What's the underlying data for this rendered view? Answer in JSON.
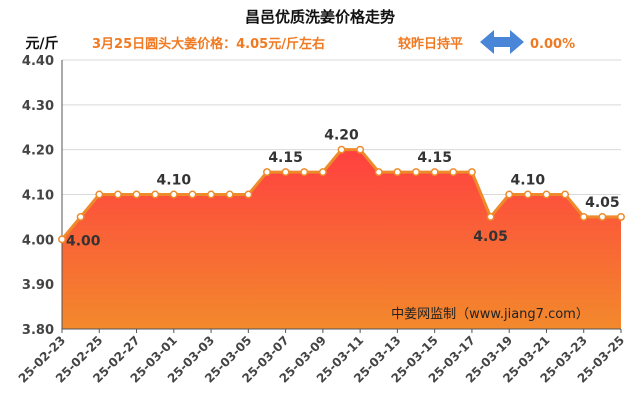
{
  "header": {
    "title": "昌邑优质洗姜价格走势",
    "unit_label": "元/斤",
    "price_info": "3月25日圆头大姜价格：4.05元/斤左右",
    "compare_text": "较昨日持平",
    "change_value": "0.00%",
    "compare_icon": "double-arrow-icon"
  },
  "source": "中姜网监制（www.jiang7.com）",
  "colors": {
    "line": "#ee8a2a",
    "fill_top": "#ff4040",
    "fill_bottom": "#f3892c",
    "accent_text": "#f07a22",
    "arrow": "#4a86d8"
  },
  "chart_data": {
    "type": "area",
    "title": "昌邑优质洗姜价格走势",
    "ylabel": "元/斤",
    "ylim": [
      3.8,
      4.4
    ],
    "yticks": [
      "3.80",
      "3.90",
      "4.00",
      "4.10",
      "4.20",
      "4.30",
      "4.40"
    ],
    "grid": true,
    "x": [
      "25-02-23",
      "25-02-24",
      "25-02-25",
      "25-02-26",
      "25-02-27",
      "25-02-28",
      "25-03-01",
      "25-03-02",
      "25-03-03",
      "25-03-04",
      "25-03-05",
      "25-03-06",
      "25-03-07",
      "25-03-08",
      "25-03-09",
      "25-03-10",
      "25-03-11",
      "25-03-12",
      "25-03-13",
      "25-03-14",
      "25-03-15",
      "25-03-16",
      "25-03-17",
      "25-03-18",
      "25-03-19",
      "25-03-20",
      "25-03-21",
      "25-03-22",
      "25-03-23",
      "25-03-24",
      "25-03-25"
    ],
    "xtick_labels": [
      "25-02-23",
      "25-02-25",
      "25-02-27",
      "25-03-01",
      "25-03-03",
      "25-03-05",
      "25-03-07",
      "25-03-09",
      "25-03-11",
      "25-03-13",
      "25-03-15",
      "25-03-17",
      "25-03-19",
      "25-03-21",
      "25-03-23",
      "25-03-25"
    ],
    "values": [
      4.0,
      4.05,
      4.1,
      4.1,
      4.1,
      4.1,
      4.1,
      4.1,
      4.1,
      4.1,
      4.1,
      4.15,
      4.15,
      4.15,
      4.15,
      4.2,
      4.2,
      4.15,
      4.15,
      4.15,
      4.15,
      4.15,
      4.15,
      4.05,
      4.1,
      4.1,
      4.1,
      4.1,
      4.05,
      4.05,
      4.05
    ],
    "data_labels": [
      {
        "index": 0,
        "text": "4.00"
      },
      {
        "index": 6,
        "text": "4.10"
      },
      {
        "index": 12,
        "text": "4.15"
      },
      {
        "index": 15,
        "text": "4.20"
      },
      {
        "index": 20,
        "text": "4.15"
      },
      {
        "index": 23,
        "text": "4.05"
      },
      {
        "index": 25,
        "text": "4.10"
      },
      {
        "index": 29,
        "text": "4.05"
      }
    ]
  }
}
